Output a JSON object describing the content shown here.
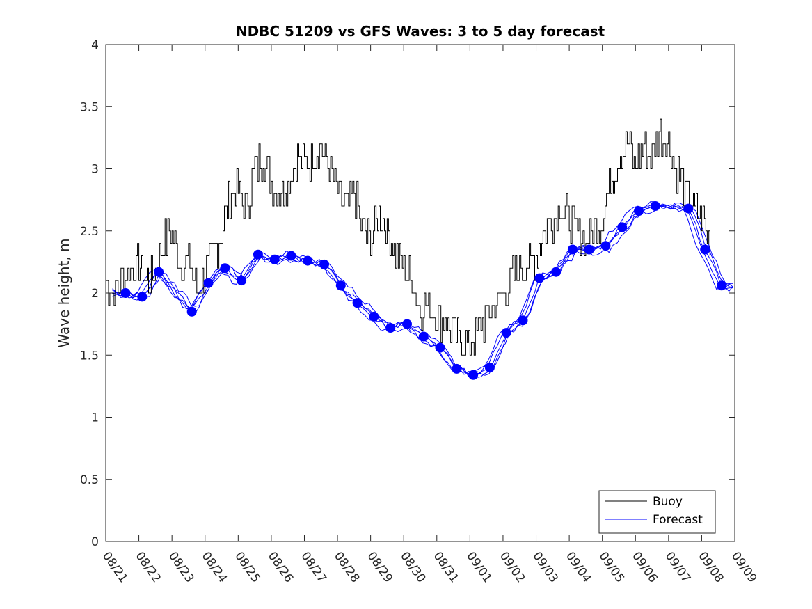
{
  "chart_data": {
    "type": "line",
    "title": "NDBC 51209 vs GFS Waves: 3 to 5 day forecast",
    "xlabel": "",
    "ylabel": "Wave height, m",
    "ylim": [
      0,
      4
    ],
    "yticks": [
      0,
      0.5,
      1,
      1.5,
      2,
      2.5,
      3,
      3.5,
      4
    ],
    "ytick_labels": [
      "0",
      "0.5",
      "1",
      "1.5",
      "2",
      "2.5",
      "3",
      "3.5",
      "4"
    ],
    "xlim": [
      0,
      19
    ],
    "xtick_labels": [
      "08/21",
      "08/22",
      "08/23",
      "08/24",
      "08/25",
      "08/26",
      "08/27",
      "08/28",
      "08/29",
      "08/30",
      "08/31",
      "09/01",
      "09/02",
      "09/03",
      "09/04",
      "09/05",
      "09/06",
      "09/07",
      "09/08",
      "09/09"
    ],
    "legend": {
      "position": "bottom-right",
      "entries": [
        "Buoy",
        "Forecast"
      ]
    },
    "colors": {
      "buoy": "#000000",
      "forecast": "#0000ff",
      "marker": "#0000ff"
    },
    "series": [
      {
        "name": "Buoy",
        "x": [
          0.0,
          0.25,
          0.5,
          0.75,
          1.0,
          1.25,
          1.5,
          1.75,
          2.0,
          2.25,
          2.5,
          2.75,
          3.0,
          3.25,
          3.5,
          3.75,
          4.0,
          4.25,
          4.5,
          4.75,
          5.0,
          5.25,
          5.5,
          5.75,
          6.0,
          6.25,
          6.5,
          6.75,
          7.0,
          7.25,
          7.5,
          7.75,
          8.0,
          8.25,
          8.5,
          8.75,
          9.0,
          9.25,
          9.5,
          9.75,
          10.0,
          10.25,
          10.5,
          10.75,
          11.0,
          11.25,
          11.5,
          11.75,
          12.0,
          12.25,
          12.5,
          12.75,
          13.0,
          13.25,
          13.5,
          13.75,
          14.0,
          14.25,
          14.5,
          14.75,
          15.0,
          15.25,
          15.5,
          15.75,
          16.0,
          16.25,
          16.5,
          16.75,
          17.0,
          17.25,
          17.5,
          17.75,
          18.0,
          18.25
        ],
        "values": [
          2.1,
          2.0,
          2.1,
          2.2,
          2.2,
          2.1,
          2.2,
          2.4,
          2.5,
          2.2,
          2.3,
          2.0,
          2.2,
          2.3,
          2.5,
          2.8,
          2.8,
          2.7,
          3.0,
          3.1,
          2.9,
          2.8,
          2.9,
          3.1,
          3.0,
          3.1,
          3.2,
          3.0,
          2.8,
          2.7,
          2.8,
          2.5,
          2.4,
          2.6,
          2.5,
          2.3,
          2.2,
          2.1,
          1.9,
          1.9,
          1.8,
          1.8,
          1.7,
          1.6,
          1.6,
          1.7,
          1.8,
          1.9,
          2.0,
          2.1,
          2.2,
          2.2,
          2.3,
          2.5,
          2.6,
          2.7,
          2.6,
          2.5,
          2.4,
          2.5,
          2.6,
          2.9,
          3.1,
          3.2,
          3.0,
          3.2,
          3.1,
          3.3,
          3.2,
          3.0,
          2.8,
          2.7,
          2.6,
          2.4
        ]
      },
      {
        "name": "Forecast",
        "x": [
          0.6,
          1.1,
          1.6,
          2.6,
          3.1,
          3.6,
          4.1,
          4.6,
          5.1,
          5.6,
          6.1,
          6.6,
          7.1,
          7.6,
          8.1,
          8.6,
          9.1,
          9.6,
          10.1,
          10.6,
          11.1,
          11.6,
          12.1,
          12.6,
          13.1,
          13.6,
          14.1,
          14.6,
          15.1,
          15.6,
          16.1,
          16.6,
          17.6,
          18.1,
          18.6
        ],
        "values": [
          2.0,
          1.97,
          2.17,
          1.85,
          2.08,
          2.2,
          2.1,
          2.31,
          2.27,
          2.3,
          2.26,
          2.23,
          2.06,
          1.92,
          1.81,
          1.72,
          1.75,
          1.65,
          1.56,
          1.39,
          1.34,
          1.4,
          1.68,
          1.78,
          2.12,
          2.17,
          2.35,
          2.35,
          2.38,
          2.53,
          2.66,
          2.7,
          2.68,
          2.35,
          2.06
        ]
      }
    ]
  }
}
